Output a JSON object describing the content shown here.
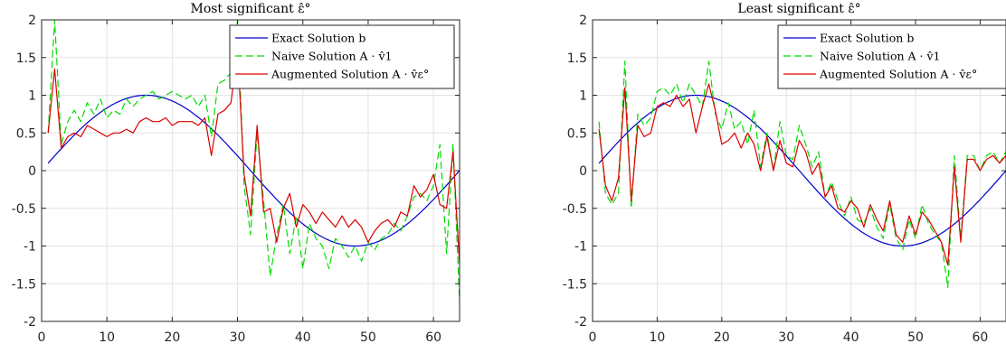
{
  "colors": {
    "exact": "#0000cc",
    "naive": "#00dd00",
    "augmented": "#dd0000",
    "grid": "#e3e3e3",
    "axis": "#262626"
  },
  "chart_data": [
    {
      "type": "line",
      "title": "Most significant ε̂°",
      "xlim": [
        0,
        64
      ],
      "ylim": [
        -2,
        2
      ],
      "xticks": [
        0,
        10,
        20,
        30,
        40,
        50,
        60
      ],
      "yticks": [
        -2,
        -1.5,
        -1,
        -0.5,
        0,
        0.5,
        1,
        1.5,
        2
      ],
      "grid": true,
      "legend_position": "top-right",
      "x_start": 1,
      "series": [
        {
          "name": "Exact Solution b",
          "style": "solid",
          "color": "#0000cc",
          "function": "sin(2*pi*x/64)"
        },
        {
          "name": "Naive Solution A · v̂1",
          "style": "dashed",
          "color": "#00dd00",
          "values": [
            0.5,
            2.0,
            0.35,
            0.65,
            0.8,
            0.65,
            0.9,
            0.75,
            0.95,
            0.7,
            0.8,
            0.75,
            0.95,
            0.85,
            0.95,
            1.0,
            1.05,
            0.95,
            1.0,
            1.05,
            1.0,
            0.95,
            1.0,
            0.85,
            1.0,
            0.45,
            1.15,
            1.2,
            1.3,
            2.0,
            -0.2,
            -0.85,
            0.5,
            -0.4,
            -1.4,
            -0.85,
            -0.45,
            -1.1,
            -0.6,
            -1.3,
            -0.7,
            -0.9,
            -1.0,
            -1.3,
            -0.9,
            -1.0,
            -1.15,
            -1.0,
            -1.2,
            -0.95,
            -1.05,
            -0.9,
            -0.85,
            -0.7,
            -0.8,
            -0.6,
            -0.35,
            -0.3,
            -0.4,
            -0.2,
            0.35,
            -1.1,
            0.35,
            -1.75
          ]
        },
        {
          "name": "Augmented Solution A · v̂ε°",
          "style": "solid",
          "color": "#dd0000",
          "values": [
            0.5,
            1.35,
            0.3,
            0.45,
            0.5,
            0.45,
            0.6,
            0.55,
            0.5,
            0.45,
            0.5,
            0.5,
            0.55,
            0.5,
            0.65,
            0.7,
            0.65,
            0.65,
            0.7,
            0.6,
            0.65,
            0.65,
            0.65,
            0.6,
            0.7,
            0.2,
            0.75,
            0.8,
            0.9,
            1.6,
            -0.05,
            -0.6,
            0.6,
            -0.55,
            -0.5,
            -0.95,
            -0.5,
            -0.3,
            -0.75,
            -0.45,
            -0.55,
            -0.7,
            -0.55,
            -0.65,
            -0.75,
            -0.6,
            -0.75,
            -0.65,
            -0.75,
            -0.95,
            -0.8,
            -0.7,
            -0.65,
            -0.75,
            -0.55,
            -0.6,
            -0.2,
            -0.35,
            -0.25,
            -0.05,
            -0.45,
            -0.5,
            0.25,
            -1.25
          ]
        }
      ],
      "legend": [
        "Exact Solution b",
        "Naive Solution A · v̂1",
        "Augmented Solution A · v̂ε°"
      ]
    },
    {
      "type": "line",
      "title": "Least significant ε̂°",
      "xlim": [
        0,
        64
      ],
      "ylim": [
        -2,
        2
      ],
      "xticks": [
        0,
        10,
        20,
        30,
        40,
        50,
        60
      ],
      "yticks": [
        -2,
        -1.5,
        -1,
        -0.5,
        0,
        0.5,
        1,
        1.5,
        2
      ],
      "grid": true,
      "legend_position": "top-right",
      "x_start": 1,
      "series": [
        {
          "name": "Exact Solution b",
          "style": "solid",
          "color": "#0000cc",
          "function": "sin(2*pi*x/64)"
        },
        {
          "name": "Naive Solution A · v̂1",
          "style": "dashed",
          "color": "#00dd00",
          "values": [
            0.65,
            -0.3,
            -0.45,
            -0.3,
            1.45,
            -0.5,
            0.75,
            0.6,
            0.7,
            1.05,
            1.1,
            1.0,
            1.15,
            0.9,
            1.15,
            1.0,
            0.85,
            1.45,
            0.75,
            0.55,
            0.9,
            0.55,
            0.65,
            0.35,
            0.8,
            0.05,
            0.5,
            0.0,
            0.65,
            0.2,
            0.15,
            0.6,
            0.35,
            0.05,
            0.25,
            -0.35,
            -0.15,
            -0.4,
            -0.6,
            -0.35,
            -0.65,
            -0.7,
            -0.5,
            -0.75,
            -0.9,
            -0.45,
            -0.9,
            -1.05,
            -0.65,
            -0.9,
            -0.45,
            -0.7,
            -0.85,
            -0.95,
            -1.55,
            0.2,
            -0.9,
            0.2,
            0.2,
            0.0,
            0.2,
            0.25,
            0.1,
            0.25
          ]
        },
        {
          "name": "Augmented Solution A · v̂ε°",
          "style": "solid",
          "color": "#dd0000",
          "values": [
            0.55,
            -0.2,
            -0.4,
            -0.1,
            1.1,
            -0.4,
            0.6,
            0.45,
            0.5,
            0.85,
            0.9,
            0.85,
            1.0,
            0.85,
            0.95,
            0.5,
            0.85,
            1.15,
            0.8,
            0.35,
            0.4,
            0.5,
            0.3,
            0.5,
            0.35,
            0.0,
            0.45,
            0.0,
            0.4,
            0.1,
            0.05,
            0.4,
            0.25,
            -0.05,
            0.1,
            -0.35,
            -0.2,
            -0.5,
            -0.55,
            -0.4,
            -0.5,
            -0.75,
            -0.45,
            -0.65,
            -0.8,
            -0.4,
            -0.85,
            -0.95,
            -0.6,
            -0.85,
            -0.55,
            -0.65,
            -0.8,
            -0.95,
            -1.25,
            0.05,
            -0.95,
            0.15,
            0.15,
            0.0,
            0.15,
            0.2,
            0.1,
            0.2
          ]
        }
      ],
      "legend": [
        "Exact Solution b",
        "Naive Solution A · v̂1",
        "Augmented Solution A · v̂ε°"
      ]
    }
  ]
}
